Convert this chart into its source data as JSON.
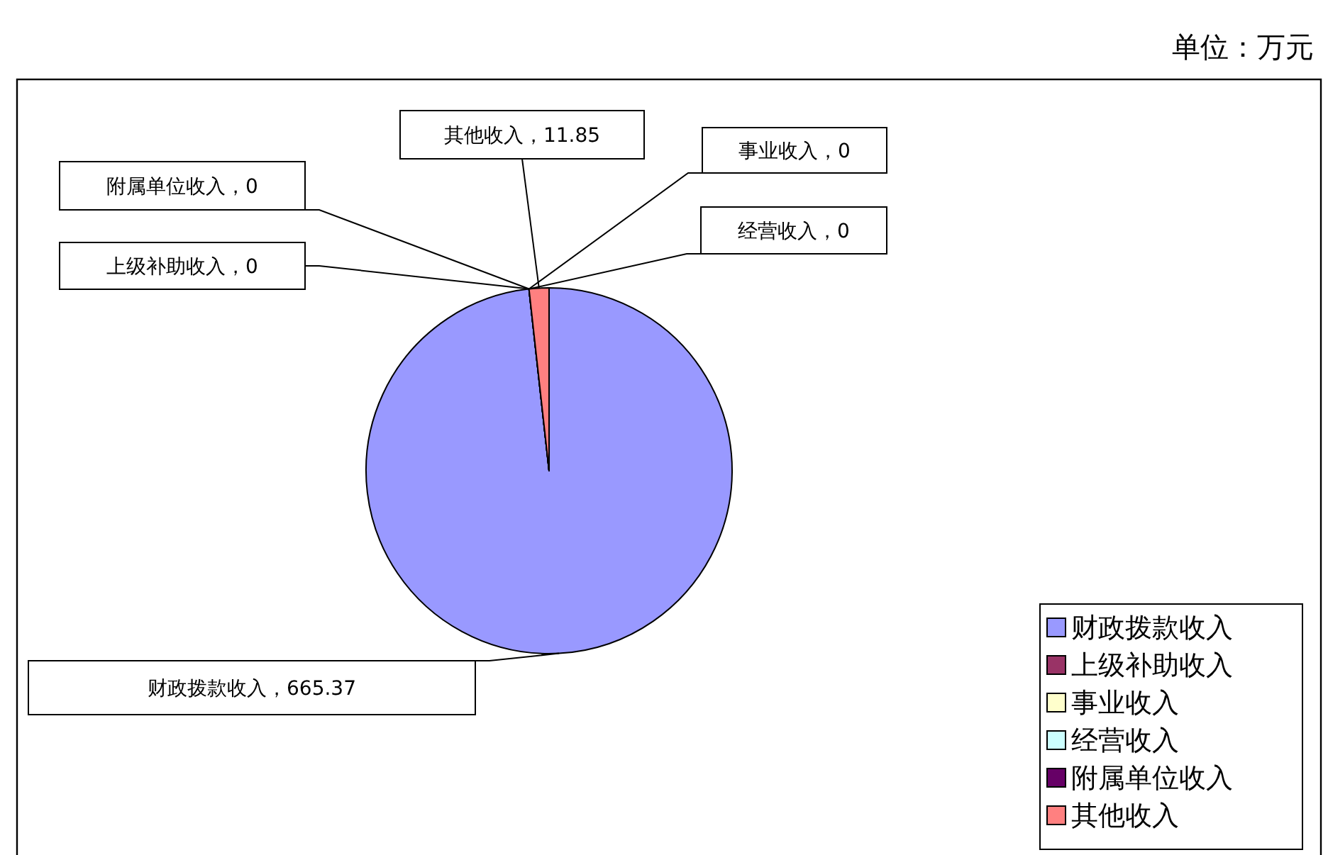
{
  "chart_data": {
    "type": "pie",
    "annotations": [
      "单位：万元"
    ],
    "categories": [
      "财政拨款收入",
      "上级补助收入",
      "事业收入",
      "经营收入",
      "附属单位收入",
      "其他收入"
    ],
    "values": [
      665.37,
      0,
      0,
      0,
      0,
      11.85
    ],
    "colors": [
      "#9999ff",
      "#993366",
      "#ffffcc",
      "#ccffff",
      "#660066",
      "#ff8080"
    ],
    "value_labels": [
      "财政拨款收入，665.37",
      "上级补助收入，0",
      "事业收入，0",
      "经营收入，0",
      "附属单位收入，0",
      "其他收入，11.85"
    ],
    "legend": "bottom right"
  }
}
